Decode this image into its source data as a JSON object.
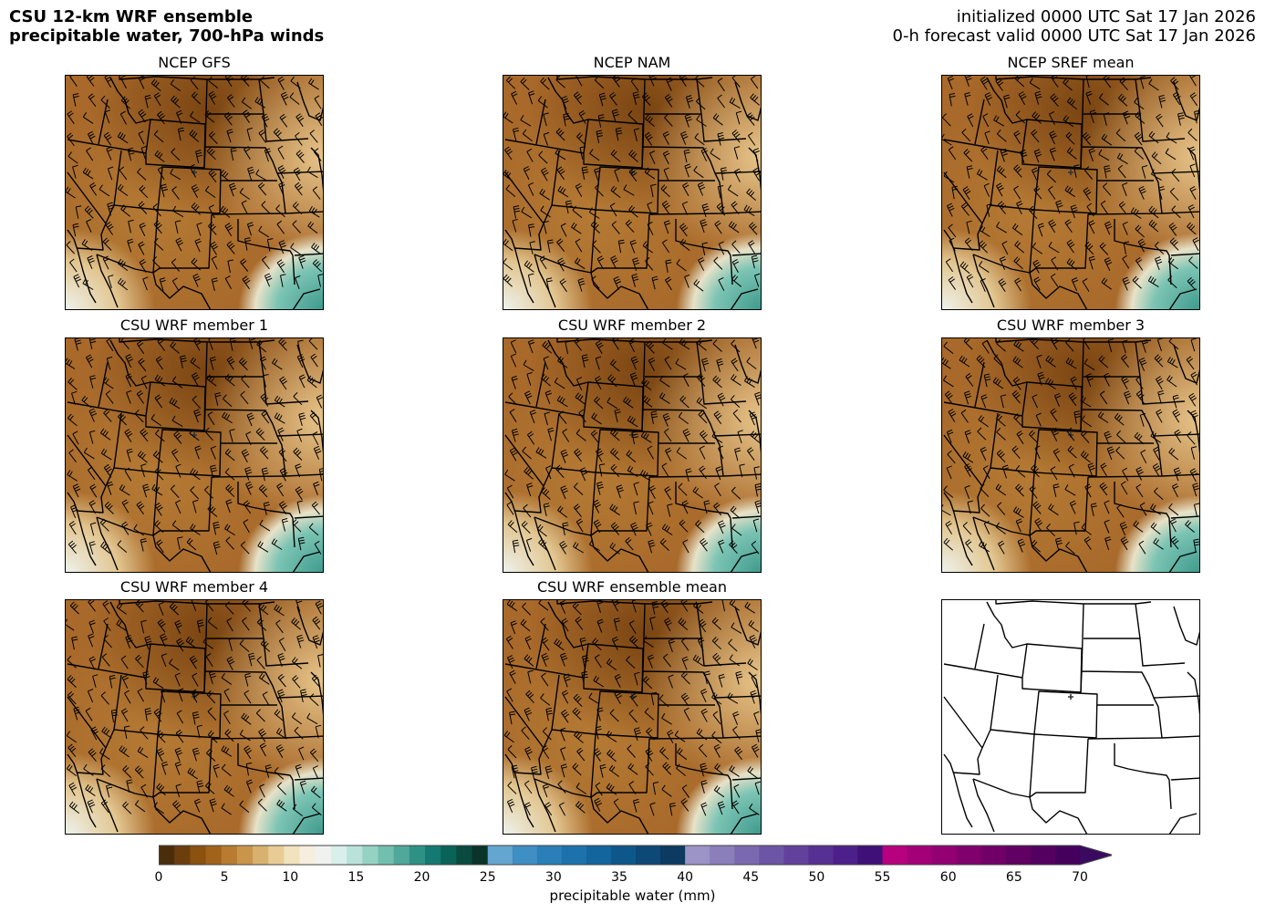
{
  "header": {
    "title_line1": "CSU 12-km WRF ensemble",
    "title_line2": "precipitable water, 700-hPa winds",
    "init_line": "initialized 0000 UTC Sat 17 Jan 2026",
    "valid_line": "0-h forecast valid 0000 UTC Sat 17 Jan 2026"
  },
  "panels": [
    {
      "title": "NCEP GFS",
      "filled": true
    },
    {
      "title": "NCEP NAM",
      "filled": true
    },
    {
      "title": "NCEP SREF mean",
      "filled": true
    },
    {
      "title": "CSU WRF member 1",
      "filled": true
    },
    {
      "title": "CSU WRF member 2",
      "filled": true
    },
    {
      "title": "CSU WRF member 3",
      "filled": true
    },
    {
      "title": "CSU WRF member 4",
      "filled": true
    },
    {
      "title": "CSU WRF ensemble mean",
      "filled": true
    },
    {
      "title": "",
      "filled": false
    }
  ],
  "colorbar": {
    "label": "precipitable water (mm)",
    "ticks": [
      "0",
      "5",
      "10",
      "15",
      "20",
      "25",
      "30",
      "35",
      "40",
      "45",
      "50",
      "55",
      "60",
      "65",
      "70"
    ],
    "min": 0,
    "max": 70,
    "extend": "max",
    "segments": [
      {
        "from": 0,
        "to": 25,
        "colors": [
          "#4a2e0c",
          "#6b3e0e",
          "#8a510f",
          "#a1621a",
          "#b87b2f",
          "#c9954b",
          "#d9b16f",
          "#e8cc96",
          "#f2e2be",
          "#f6eedf",
          "#f0f2ef",
          "#d8efea",
          "#b9e3da",
          "#95d2c4",
          "#72bfae",
          "#4fa899",
          "#2f9084",
          "#147970",
          "#0a6358",
          "#0a4a3f",
          "#0a3329"
        ]
      },
      {
        "from": 25,
        "to": 40,
        "colors": [
          "#65a6d0",
          "#3f8ec4",
          "#2a7fb9",
          "#1d71ac",
          "#13659d",
          "#0e578a",
          "#0d4877",
          "#0c3a60"
        ]
      },
      {
        "from": 40,
        "to": 55,
        "colors": [
          "#9c93c6",
          "#8a7fbb",
          "#7a69b0",
          "#6d55a6",
          "#61419c",
          "#573093",
          "#4d1f8a",
          "#3f1078"
        ]
      },
      {
        "from": 55,
        "to": 70,
        "colors": [
          "#b7007f",
          "#a30078",
          "#920072",
          "#80006e",
          "#700068",
          "#600062",
          "#530060",
          "#45005e"
        ]
      },
      {
        "from": 70,
        "to": 75,
        "colors": [
          "#3a0a60"
        ]
      }
    ]
  }
}
